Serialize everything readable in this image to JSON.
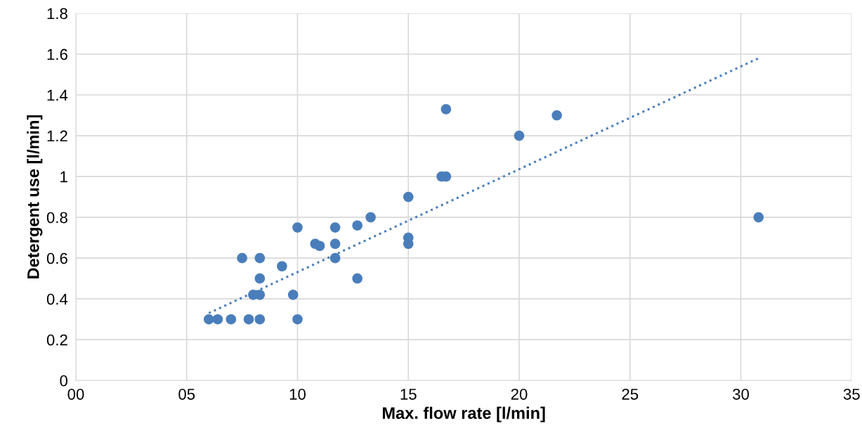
{
  "chart_data": {
    "type": "scatter",
    "xlabel": "Max. flow rate [l/min]",
    "ylabel": "Detergent use [l/min]",
    "xlim": [
      0,
      35
    ],
    "ylim": [
      0,
      1.8
    ],
    "xticks": [
      {
        "value": 0,
        "label": "00"
      },
      {
        "value": 5,
        "label": "05"
      },
      10,
      15,
      20,
      25,
      30,
      35
    ],
    "yticks": [
      0,
      0.2,
      0.4,
      0.6,
      0.8,
      1,
      1.2,
      1.4,
      1.6,
      1.8
    ],
    "grid": true,
    "series": [
      {
        "marker": "circle",
        "color": "#4a7ebb",
        "x": [
          6,
          6.4,
          7,
          7.5,
          7.8,
          8,
          8.3,
          8.3,
          8.3,
          8.3,
          9.3,
          9.8,
          10,
          10,
          10.8,
          11,
          11.7,
          11.7,
          11.7,
          12.7,
          12.7,
          13.3,
          15,
          15,
          15,
          16.5,
          16.7,
          16.7,
          20,
          21.7,
          30.8
        ],
        "values": [
          0.3,
          0.3,
          0.3,
          0.6,
          0.3,
          0.42,
          0.6,
          0.5,
          0.42,
          0.3,
          0.56,
          0.42,
          0.75,
          0.3,
          0.67,
          0.66,
          0.75,
          0.67,
          0.6,
          0.76,
          0.5,
          0.8,
          0.9,
          0.7,
          0.67,
          1.0,
          1.0,
          1.33,
          1.2,
          1.3,
          0.8
        ]
      },
      {
        "type": "line",
        "color": "#4a7ebb",
        "line_style": "dotted",
        "marker": "none",
        "x": [
          6,
          30.8
        ],
        "values": [
          0.33,
          1.58
        ]
      }
    ]
  }
}
